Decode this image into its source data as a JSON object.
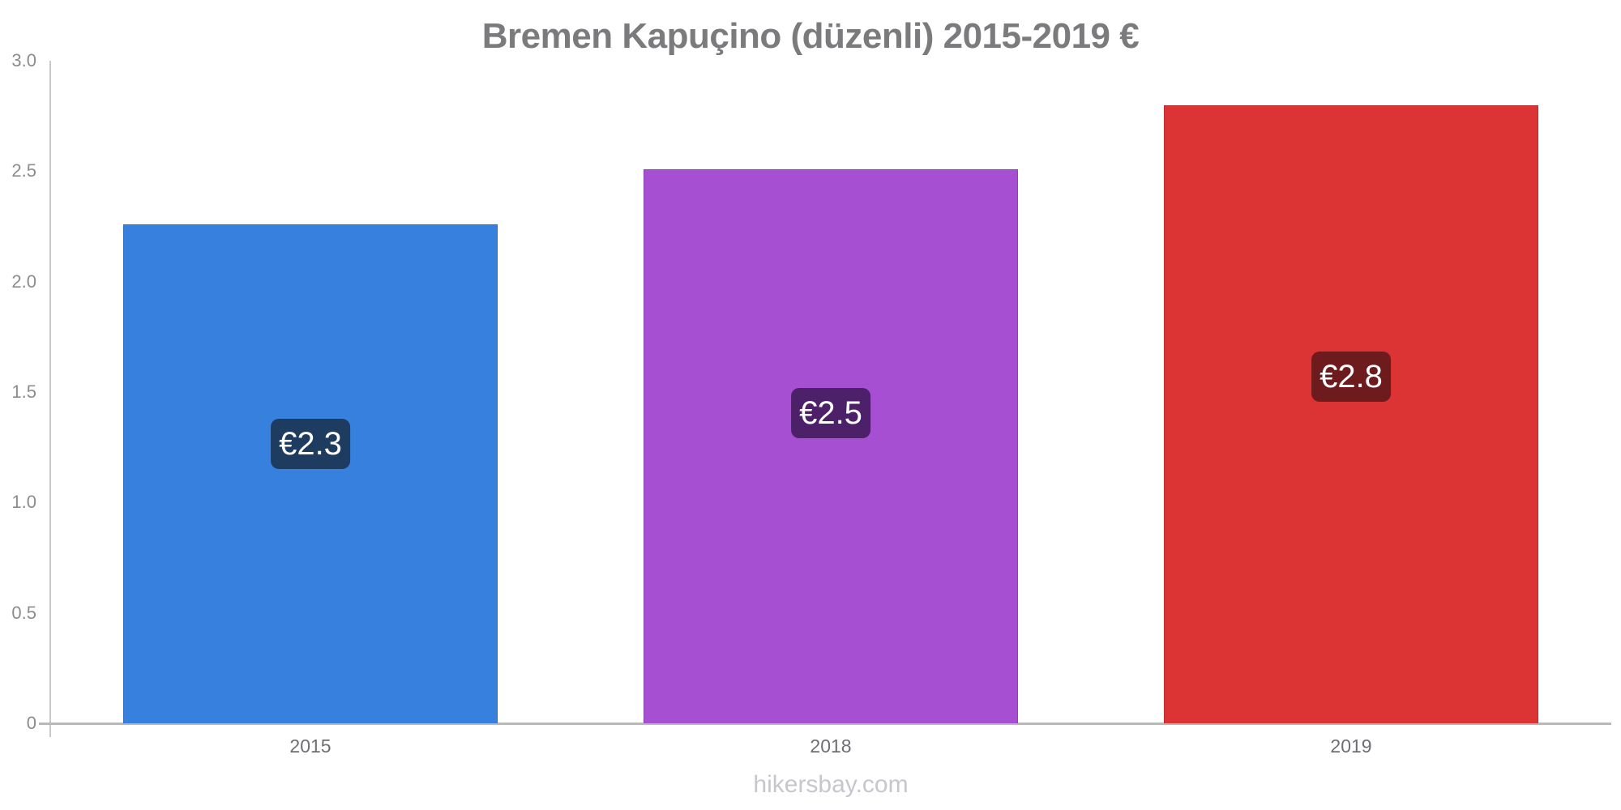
{
  "title": "Bremen Kapuçino (düzenli) 2015-2019 €",
  "footer": "hikersbay.com",
  "chart_data": {
    "type": "bar",
    "title": "Bremen Kapuçino (düzenli) 2015-2019 €",
    "categories": [
      "2015",
      "2018",
      "2019"
    ],
    "values": [
      2.26,
      2.51,
      2.8
    ],
    "bar_labels": [
      "€2.3",
      "€2.5",
      "€2.8"
    ],
    "bar_colors": [
      "#3780dd",
      "#a64fd2",
      "#dc3434"
    ],
    "badge_colors": [
      "#1e3c5f",
      "#4c2169",
      "#6e1b1e"
    ],
    "currency": "€",
    "ylabel": "",
    "xlabel": "",
    "ylim": [
      0,
      3.0
    ],
    "ytick_labels": [
      "0",
      "0.5",
      "1.0",
      "1.5",
      "2.0",
      "2.5",
      "3.0"
    ],
    "ytick_values": [
      0,
      0.5,
      1.0,
      1.5,
      2.0,
      2.5,
      3.0
    ],
    "grid": false,
    "legend": false,
    "watermark": "hikersbay.com"
  }
}
